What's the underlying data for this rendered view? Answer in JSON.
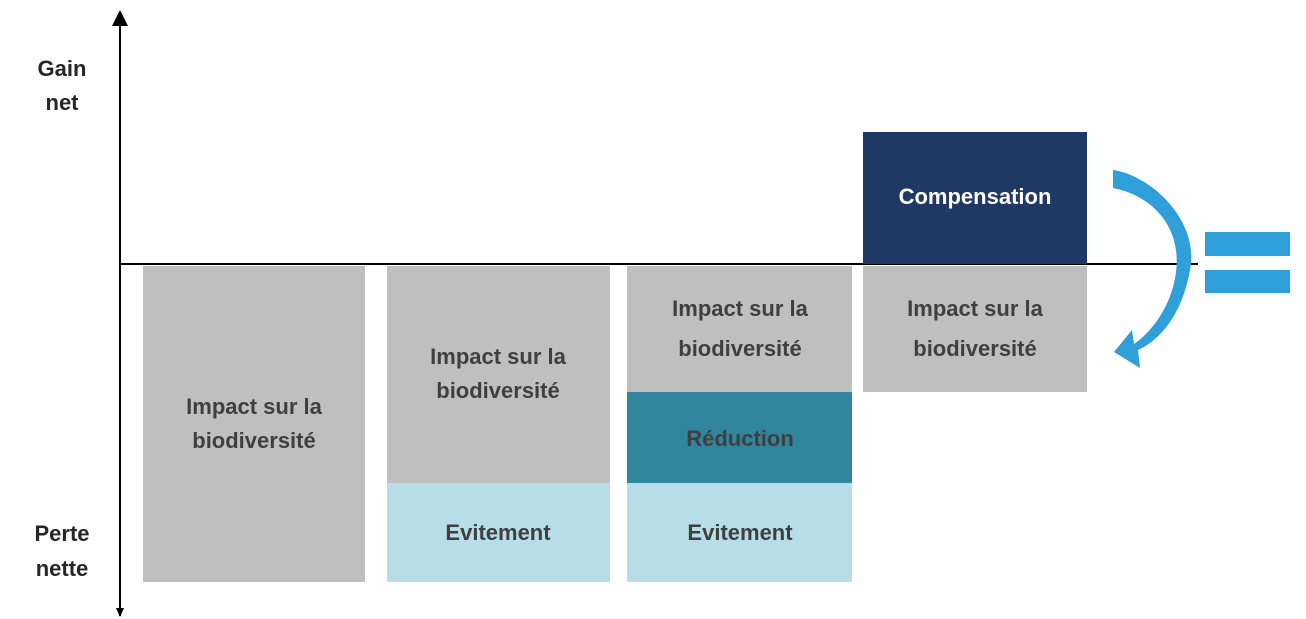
{
  "axis": {
    "top_label": [
      "Gain",
      "net"
    ],
    "bottom_label": [
      "Perte",
      "nette"
    ]
  },
  "columns": [
    {
      "blocks": [
        {
          "lines": [
            "Impact sur la",
            "biodiversité"
          ]
        }
      ]
    },
    {
      "blocks": [
        {
          "lines": [
            "Impact sur la",
            "biodiversité"
          ]
        },
        {
          "lines": [
            "Evitement"
          ]
        }
      ]
    },
    {
      "blocks": [
        {
          "lines": [
            "Impact sur la",
            "biodiversité"
          ]
        },
        {
          "lines": [
            "Réduction"
          ]
        },
        {
          "lines": [
            "Evitement"
          ]
        }
      ]
    },
    {
      "blocks": [
        {
          "lines": [
            "Compensation"
          ]
        },
        {
          "lines": [
            "Impact sur la",
            "biodiversité"
          ]
        }
      ]
    }
  ]
}
